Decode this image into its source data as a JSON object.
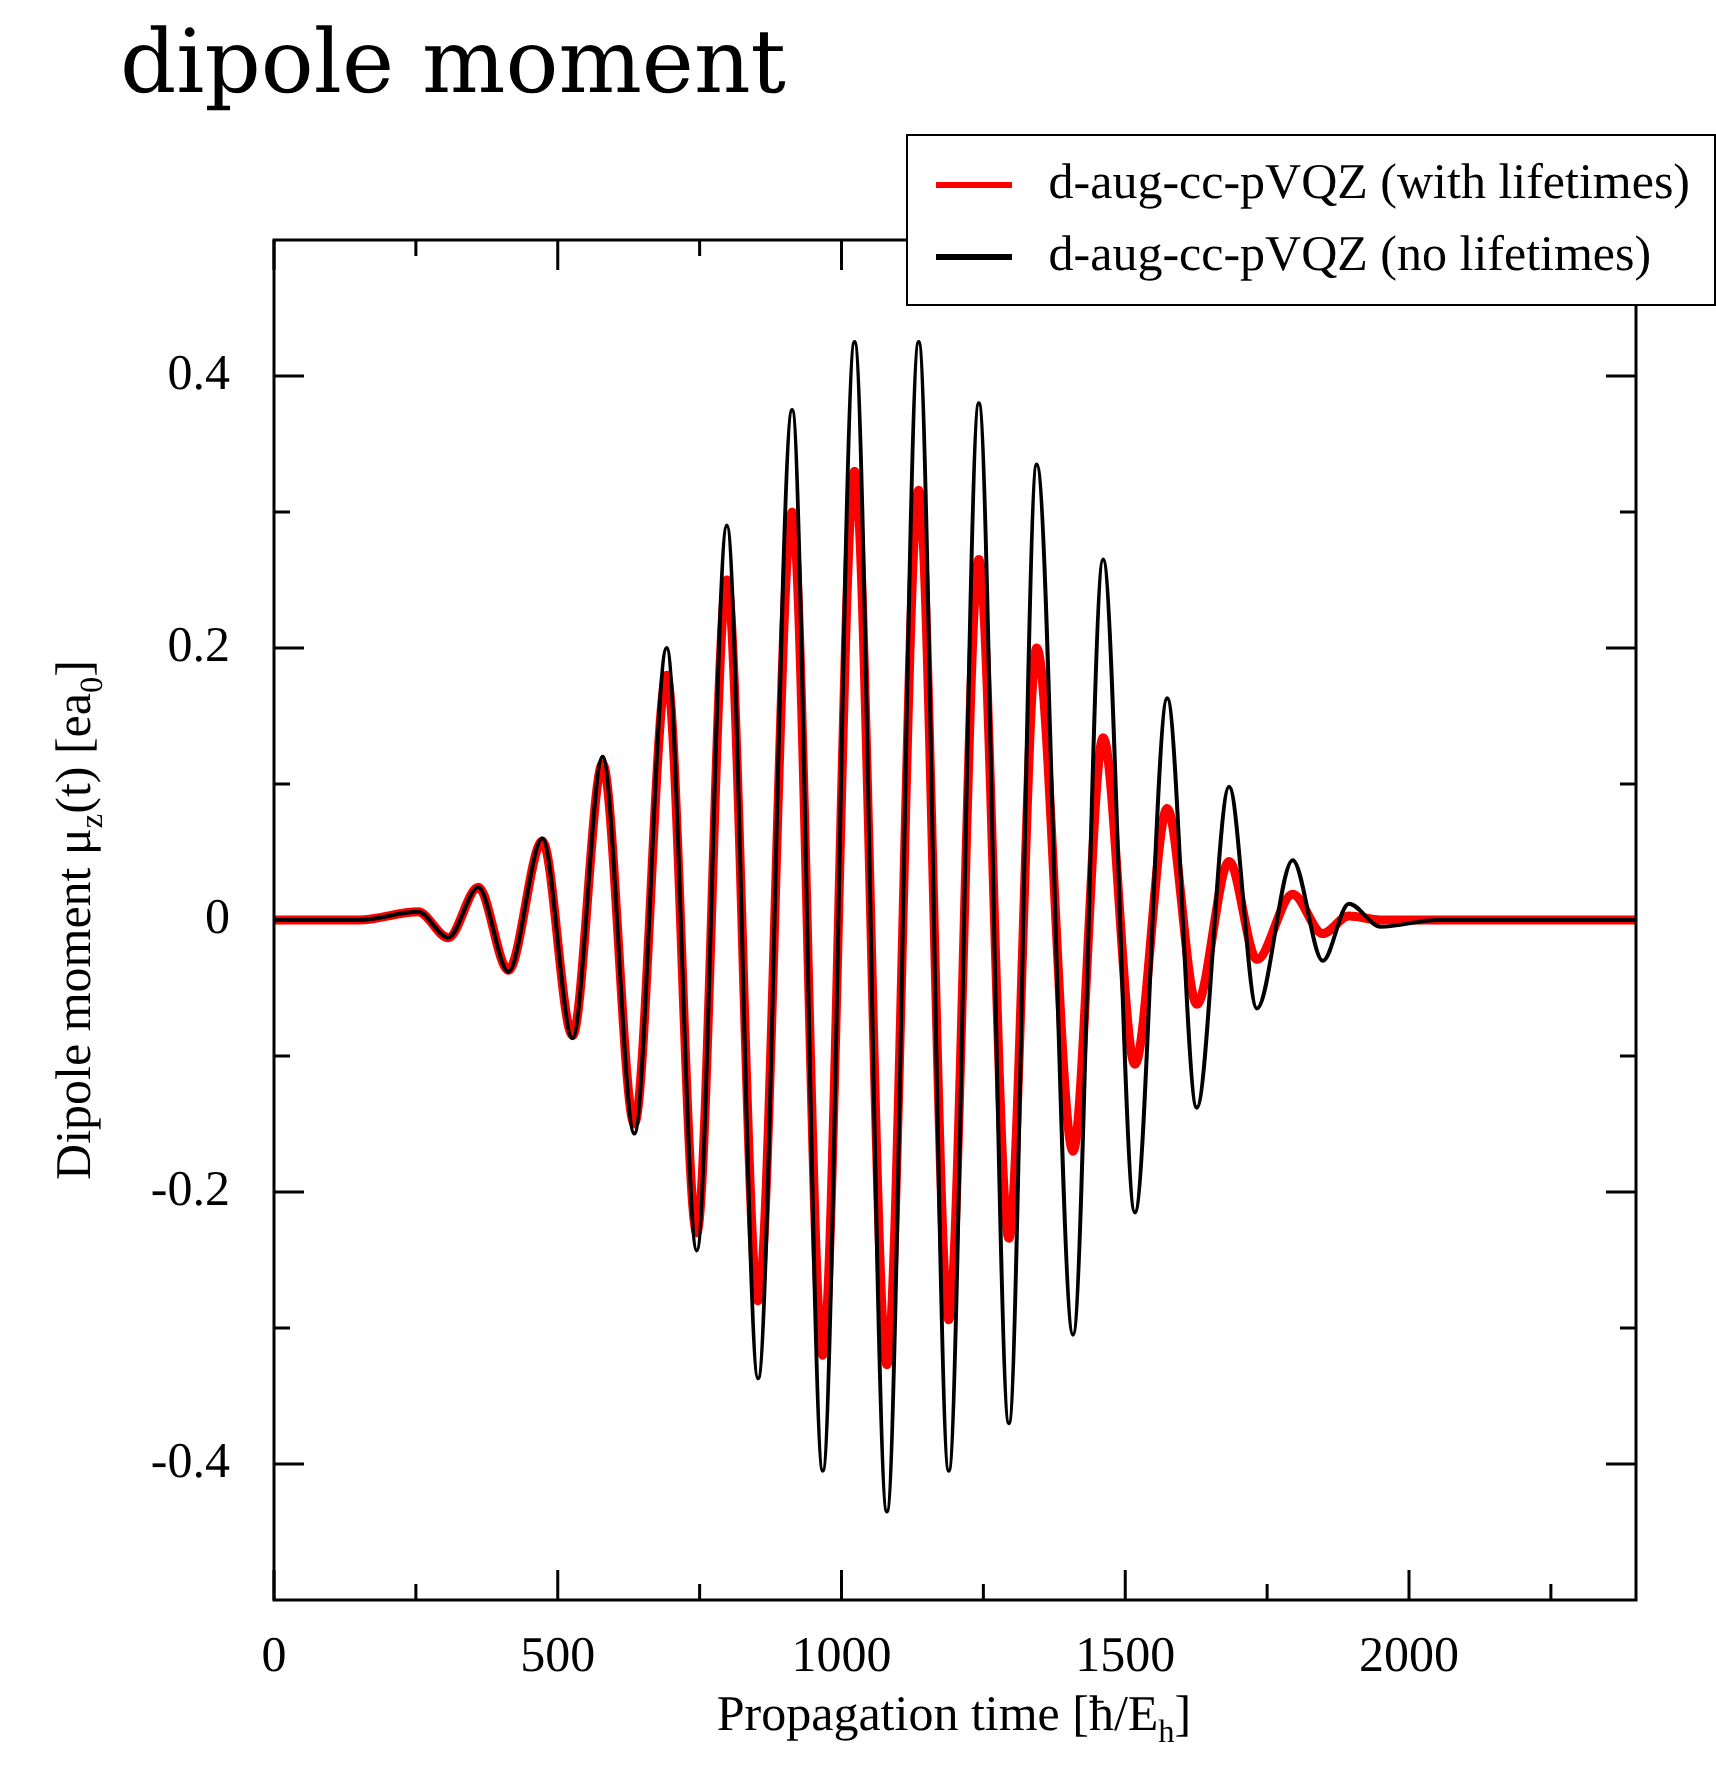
{
  "chart_data": {
    "type": "line",
    "title": "dipole moment",
    "xlabel": "Propagation time [ħ/E$_{h}$]",
    "ylabel": "Dipole moment μ$_{z}$(t) [ea$_{0}$]",
    "x": [
      0,
      150,
      254,
      307,
      360,
      413,
      473,
      526,
      579,
      635,
      692,
      745,
      798,
      853,
      913,
      967,
      1023,
      1080,
      1136,
      1189,
      1242,
      1295,
      1344,
      1408,
      1461,
      1517,
      1574,
      1626,
      1683,
      1732,
      1795,
      1848,
      1894,
      1950,
      2050,
      2400
    ],
    "series": [
      {
        "name": "d-aug-cc-pVQZ (with lifetimes)",
        "color": "#ff0000",
        "values": [
          0,
          0,
          0.006,
          -0.013,
          0.024,
          -0.037,
          0.058,
          -0.085,
          0.115,
          -0.15,
          0.18,
          -0.23,
          0.25,
          -0.28,
          0.3,
          -0.32,
          0.33,
          -0.327,
          0.316,
          -0.294,
          0.265,
          -0.234,
          0.2,
          -0.17,
          0.134,
          -0.106,
          0.082,
          -0.062,
          0.043,
          -0.029,
          0.019,
          -0.01,
          0.003,
          0,
          0,
          0
        ]
      },
      {
        "name": "d-aug-cc-pVQZ (no lifetimes)",
        "color": "#000000",
        "values": [
          0,
          0,
          0.006,
          -0.013,
          0.024,
          -0.038,
          0.06,
          -0.087,
          0.12,
          -0.157,
          0.2,
          -0.243,
          0.29,
          -0.337,
          0.375,
          -0.405,
          0.425,
          -0.435,
          0.425,
          -0.405,
          0.38,
          -0.37,
          0.335,
          -0.305,
          0.265,
          -0.215,
          0.163,
          -0.138,
          0.098,
          -0.065,
          0.044,
          -0.03,
          0.012,
          -0.005,
          0,
          0
        ]
      }
    ],
    "xlim": [
      0,
      2400
    ],
    "xticks": [
      0,
      {
        "value": 250,
        "label": null
      },
      500,
      {
        "value": 750,
        "label": null
      },
      1000,
      {
        "value": 1250,
        "label": null
      },
      1500,
      {
        "value": 1750,
        "label": null
      },
      2000,
      {
        "value": 2250,
        "label": null
      }
    ],
    "ylim": [
      -0.5,
      0.5
    ],
    "yticks": [
      -0.4,
      {
        "value": -0.3,
        "label": null
      },
      -0.2,
      {
        "value": -0.1,
        "label": null
      },
      0,
      {
        "value": 0.1,
        "label": null
      },
      0.2,
      {
        "value": 0.3,
        "label": null
      },
      0.4
    ],
    "grid": false,
    "legend": "top right",
    "marker": "none",
    "line_style": "solid"
  }
}
